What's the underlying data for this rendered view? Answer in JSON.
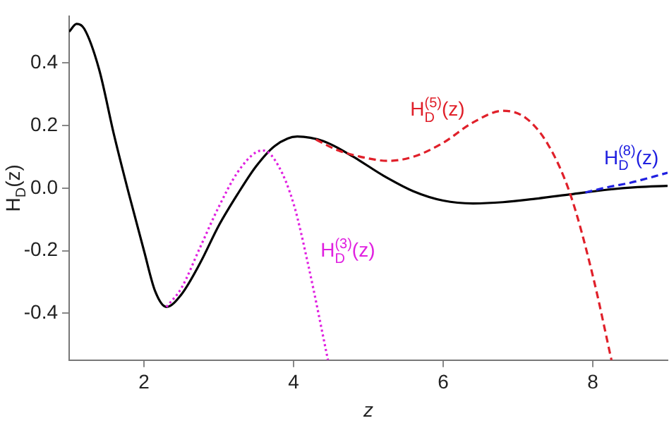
{
  "chart_data": {
    "type": "line",
    "xlabel": "z",
    "ylabel": "H$_{D}$(z)",
    "xlim": [
      1,
      9
    ],
    "xticks": [
      2,
      4,
      6,
      8
    ],
    "ylim": [
      -0.55,
      0.55
    ],
    "yticks": [
      -0.4,
      -0.2,
      {
        "value": 0,
        "label": "0.0"
      },
      0.2,
      0.4
    ],
    "grid": false,
    "legend": false,
    "marker": "none",
    "series": [
      {
        "color": "#000000",
        "line_style": "solid",
        "x": [
          1,
          1.1,
          1.2,
          1.4,
          1.6,
          1.8,
          2.0,
          2.15,
          2.3,
          2.5,
          2.75,
          3.0,
          3.25,
          3.5,
          3.75,
          4.05,
          4.4,
          4.8,
          5.2,
          5.6,
          6.0,
          6.4,
          6.8,
          7.2,
          7.7,
          8.2,
          8.6,
          9
        ],
        "values": [
          0.5,
          0.525,
          0.51,
          0.38,
          0.17,
          -0.02,
          -0.2,
          -0.33,
          -0.38,
          -0.34,
          -0.24,
          -0.12,
          -0.02,
          0.07,
          0.135,
          0.165,
          0.15,
          0.1,
          0.04,
          -0.01,
          -0.04,
          -0.049,
          -0.045,
          -0.035,
          -0.02,
          -0.005,
          0.003,
          0.007
        ]
      },
      {
        "name": "H$_{D}$$^{(3)}$(z)",
        "color": "#e020e0",
        "line_style": "dotted",
        "x": [
          2.3,
          2.5,
          2.75,
          3.0,
          3.25,
          3.5,
          3.6,
          3.8,
          4.0,
          4.2,
          4.46
        ],
        "values": [
          -0.38,
          -0.32,
          -0.19,
          -0.06,
          0.05,
          0.115,
          0.12,
          0.07,
          -0.05,
          -0.25,
          -0.55
        ]
      },
      {
        "name": "H$_{D}$$^{(5)}$(z)",
        "color": "#e0202a",
        "line_style": "dashed",
        "x": [
          4.3,
          4.6,
          5.0,
          5.25,
          5.6,
          6.0,
          6.4,
          6.8,
          7.1,
          7.4,
          7.7,
          8.0,
          8.25
        ],
        "values": [
          0.155,
          0.12,
          0.095,
          0.087,
          0.1,
          0.145,
          0.21,
          0.247,
          0.225,
          0.14,
          -0.02,
          -0.28,
          -0.55
        ]
      },
      {
        "name": "H$_{D}$$^{(8)}$(z)",
        "color": "#2020e0",
        "line_style": "dashed",
        "x": [
          7.9,
          8.2,
          8.5,
          9
        ],
        "values": [
          -0.014,
          0.003,
          0.017,
          0.049
        ]
      }
    ]
  }
}
